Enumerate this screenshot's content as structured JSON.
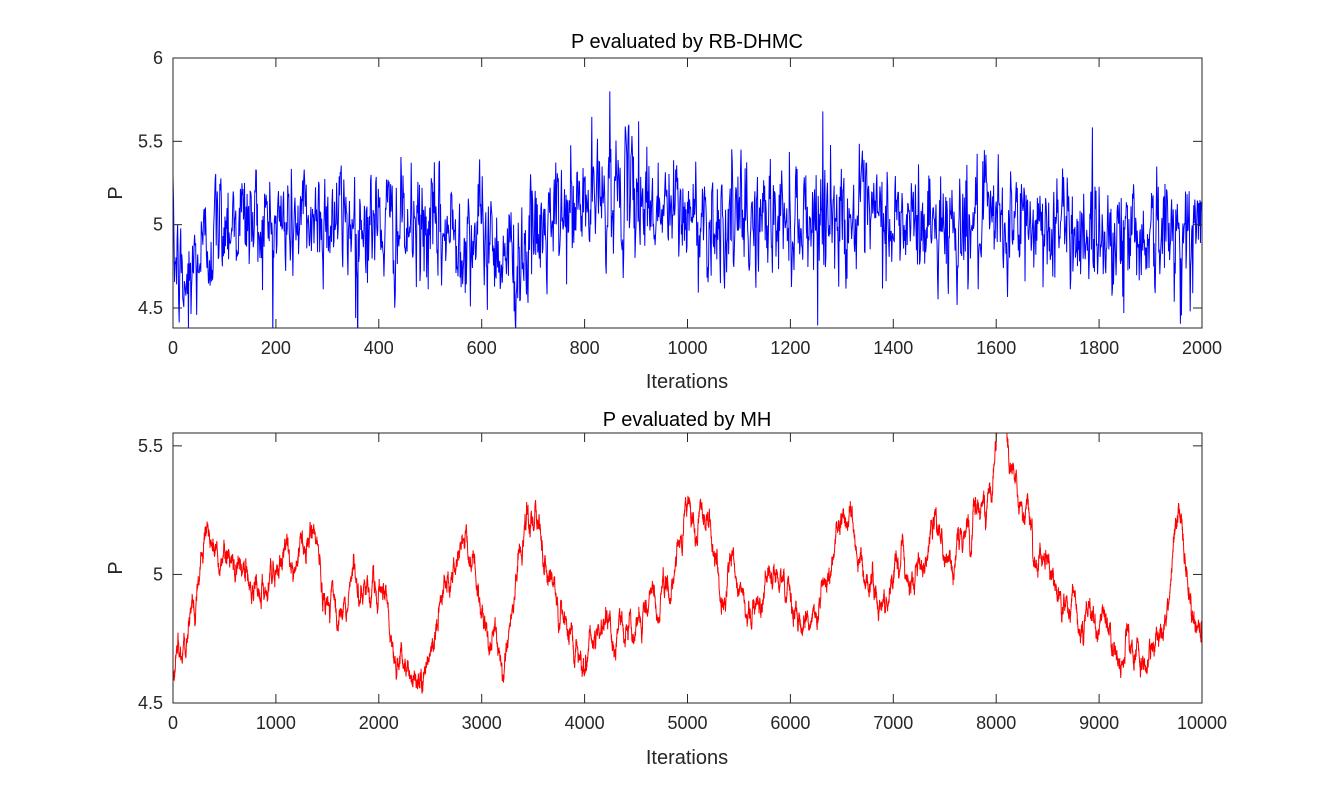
{
  "chart_data": [
    {
      "type": "line",
      "title": "P evaluated by RB-DHMC",
      "xlabel": "Iterations",
      "ylabel": "P",
      "xlim": [
        0,
        2000
      ],
      "ylim": [
        4.38,
        6.0
      ],
      "xticks": [
        0,
        200,
        400,
        600,
        800,
        1000,
        1200,
        1400,
        1600,
        1800,
        2000
      ],
      "xtick_labels": [
        "0",
        "200",
        "400",
        "600",
        "800",
        "1000",
        "1200",
        "1400",
        "1600",
        "1800",
        "2000"
      ],
      "yticks": [
        4.5,
        5.0,
        5.5,
        6.0
      ],
      "ytick_labels": [
        "4.5",
        "5",
        "5.5",
        "6"
      ],
      "grid": false,
      "series": [
        {
          "name": "P",
          "color": "#0000ff",
          "n_points": 2000,
          "mean": 5.0,
          "std": 0.17,
          "trace_anchors": [
            [
              0,
              4.85
            ],
            [
              20,
              4.6
            ],
            [
              40,
              4.75
            ],
            [
              100,
              5.05
            ],
            [
              200,
              5.0
            ],
            [
              300,
              5.05
            ],
            [
              400,
              5.0
            ],
            [
              500,
              4.95
            ],
            [
              600,
              4.95
            ],
            [
              660,
              4.8
            ],
            [
              700,
              4.9
            ],
            [
              760,
              5.05
            ],
            [
              850,
              5.2
            ],
            [
              900,
              5.15
            ],
            [
              1000,
              5.05
            ],
            [
              1100,
              5.0
            ],
            [
              1200,
              5.05
            ],
            [
              1300,
              5.05
            ],
            [
              1400,
              5.0
            ],
            [
              1500,
              5.0
            ],
            [
              1600,
              5.0
            ],
            [
              1700,
              5.0
            ],
            [
              1800,
              4.95
            ],
            [
              1900,
              4.95
            ],
            [
              2000,
              4.95
            ]
          ],
          "notable_points": [
            [
              1,
              5.15
            ],
            [
              30,
              4.38
            ],
            [
              355,
              4.44
            ],
            [
              663,
              4.48
            ],
            [
              849,
              5.8
            ],
            [
              905,
              5.62
            ],
            [
              1263,
              5.68
            ],
            [
              1848,
              4.47
            ],
            [
              1977,
              4.48
            ]
          ]
        }
      ]
    },
    {
      "type": "line",
      "title": "P evaluated by MH",
      "xlabel": "Iterations",
      "ylabel": "P",
      "xlim": [
        0,
        10000
      ],
      "ylim": [
        4.5,
        5.55
      ],
      "xticks": [
        0,
        1000,
        2000,
        3000,
        4000,
        5000,
        6000,
        7000,
        8000,
        9000,
        10000
      ],
      "xtick_labels": [
        "0",
        "1000",
        "2000",
        "3000",
        "4000",
        "5000",
        "6000",
        "7000",
        "8000",
        "9000",
        "10000"
      ],
      "yticks": [
        4.5,
        5.0,
        5.5
      ],
      "ytick_labels": [
        "4.5",
        "5",
        "5.5"
      ],
      "grid": false,
      "series": [
        {
          "name": "P",
          "color": "#ff0000",
          "n_points": 10000,
          "trace_anchors": [
            [
              0,
              4.65
            ],
            [
              150,
              4.85
            ],
            [
              400,
              5.15
            ],
            [
              600,
              5.0
            ],
            [
              1000,
              5.0
            ],
            [
              1300,
              5.1
            ],
            [
              1600,
              4.9
            ],
            [
              1850,
              5.15
            ],
            [
              2100,
              4.85
            ],
            [
              2400,
              4.55
            ],
            [
              2600,
              4.85
            ],
            [
              2850,
              5.2
            ],
            [
              3100,
              4.85
            ],
            [
              3200,
              4.7
            ],
            [
              3450,
              5.25
            ],
            [
              3700,
              4.95
            ],
            [
              4000,
              4.6
            ],
            [
              4100,
              4.85
            ],
            [
              4400,
              4.75
            ],
            [
              4700,
              4.85
            ],
            [
              5000,
              5.2
            ],
            [
              5200,
              5.15
            ],
            [
              5500,
              4.95
            ],
            [
              5700,
              4.8
            ],
            [
              5900,
              5.05
            ],
            [
              6200,
              4.8
            ],
            [
              6400,
              5.05
            ],
            [
              6600,
              5.3
            ],
            [
              6800,
              4.85
            ],
            [
              7000,
              4.95
            ],
            [
              7300,
              5.1
            ],
            [
              7600,
              5.05
            ],
            [
              7900,
              5.25
            ],
            [
              8050,
              5.55
            ],
            [
              8200,
              5.2
            ],
            [
              8500,
              5.15
            ],
            [
              8800,
              4.8
            ],
            [
              9000,
              4.75
            ],
            [
              9300,
              4.7
            ],
            [
              9600,
              4.75
            ],
            [
              9800,
              5.2
            ],
            [
              9900,
              4.8
            ],
            [
              10000,
              4.8
            ]
          ]
        }
      ]
    }
  ]
}
